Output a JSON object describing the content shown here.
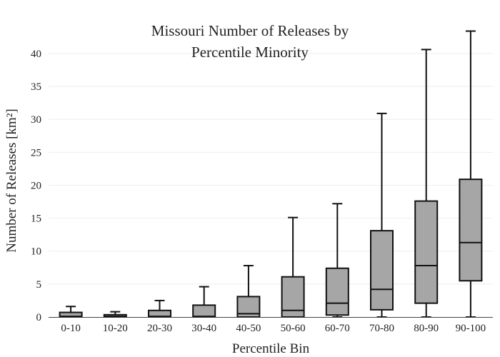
{
  "chart_data": {
    "type": "box",
    "title_lines": [
      "Missouri Number of Releases by",
      "Percentile Minority"
    ],
    "xlabel": "Percentile Bin",
    "ylabel": "Number of Releases  [km²]",
    "ylim": [
      0,
      44
    ],
    "yticks": [
      0,
      5,
      10,
      15,
      20,
      25,
      30,
      35,
      40
    ],
    "grid": true,
    "colors": {
      "box_fill": "#a6a6a6",
      "box_stroke": "#111111"
    },
    "categories": [
      "0-10",
      "10-20",
      "20-30",
      "30-40",
      "40-50",
      "50-60",
      "60-70",
      "70-80",
      "80-90",
      "90-100"
    ],
    "boxes": [
      {
        "category": "0-10",
        "min": 0,
        "q1": 0,
        "median": 0.1,
        "q3": 0.7,
        "max": 1.6
      },
      {
        "category": "10-20",
        "min": 0,
        "q1": 0,
        "median": 0.1,
        "q3": 0.35,
        "max": 0.8
      },
      {
        "category": "20-30",
        "min": 0,
        "q1": 0,
        "median": 0.1,
        "q3": 1.0,
        "max": 2.5
      },
      {
        "category": "30-40",
        "min": 0,
        "q1": 0,
        "median": 0.1,
        "q3": 1.8,
        "max": 4.6
      },
      {
        "category": "40-50",
        "min": 0,
        "q1": 0,
        "median": 0.5,
        "q3": 3.1,
        "max": 7.8
      },
      {
        "category": "50-60",
        "min": 0,
        "q1": 0,
        "median": 1.0,
        "q3": 6.1,
        "max": 15.1
      },
      {
        "category": "60-70",
        "min": 0,
        "q1": 0.3,
        "median": 2.1,
        "q3": 7.4,
        "max": 17.2
      },
      {
        "category": "70-80",
        "min": 0,
        "q1": 1.1,
        "median": 4.2,
        "q3": 13.1,
        "max": 30.9
      },
      {
        "category": "80-90",
        "min": 0,
        "q1": 2.1,
        "median": 7.8,
        "q3": 17.6,
        "max": 40.6
      },
      {
        "category": "90-100",
        "min": 0,
        "q1": 5.5,
        "median": 11.3,
        "q3": 20.9,
        "max": 43.4
      }
    ]
  }
}
